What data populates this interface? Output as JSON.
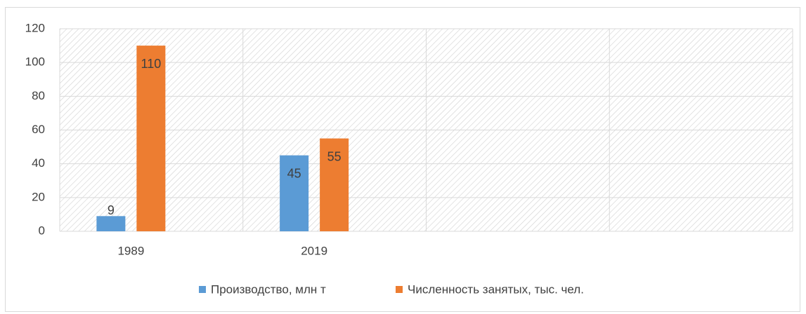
{
  "chart_data": {
    "type": "bar",
    "categories": [
      "1989",
      "2019",
      null,
      null
    ],
    "series": [
      {
        "name": "Производство, млн т",
        "color": "#5b9bd5",
        "values": [
          9,
          45,
          null,
          null
        ]
      },
      {
        "name": "Численность занятых, тыс. чел.",
        "color": "#ed7d31",
        "values": [
          110,
          55,
          null,
          null
        ]
      }
    ],
    "ylim": [
      0,
      120
    ],
    "yticks": [
      0,
      20,
      40,
      60,
      80,
      100,
      120
    ],
    "grid": true,
    "legend": "bottom"
  }
}
